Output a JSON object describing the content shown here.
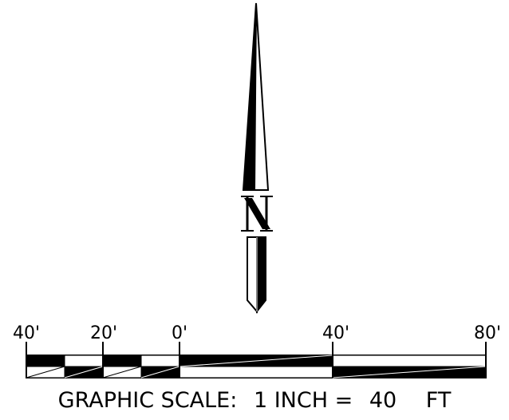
{
  "north_arrow": {
    "letter": "N",
    "icon": "north-arrow-icon"
  },
  "scale_bar": {
    "tick_labels": [
      "40'",
      "20'",
      "0'",
      "40'",
      "80'"
    ],
    "tick_values": [
      -40,
      -20,
      0,
      40,
      80
    ],
    "unit": "FT",
    "caption_prefix": "GRAPHIC SCALE:",
    "caption_middle": "1 INCH =",
    "caption_value": "40",
    "caption_unit": "FT"
  },
  "colors": {
    "ink": "#000000",
    "paper": "#ffffff"
  }
}
